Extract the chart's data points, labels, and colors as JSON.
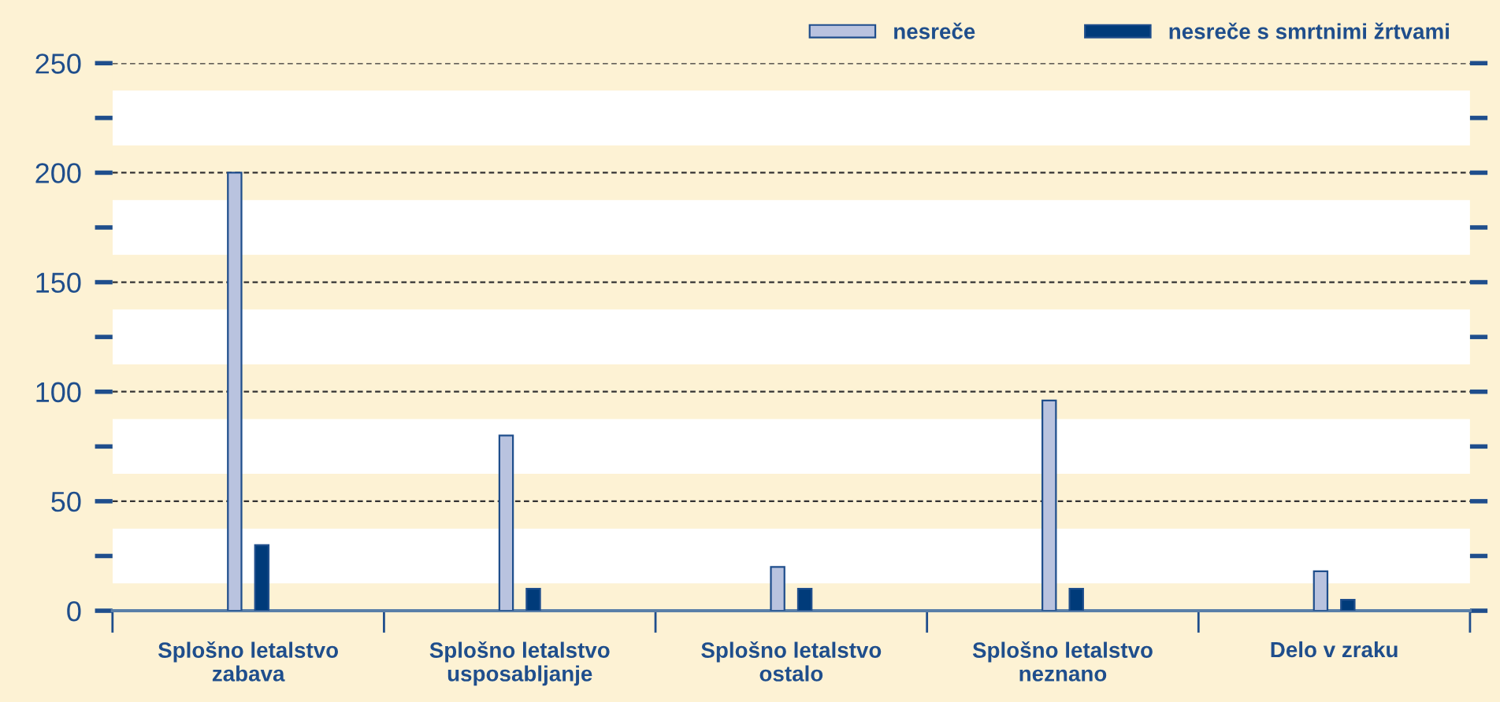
{
  "chart_data": {
    "type": "bar",
    "categories": [
      "Splošno letalstvo\nzabava",
      "Splošno letalstvo\nusposabljanje",
      "Splošno letalstvo\nostalo",
      "Splošno letalstvo\nneznano",
      "Delo v zraku"
    ],
    "series": [
      {
        "name": "nesreče",
        "color": "#b9c3df",
        "values": [
          200,
          80,
          20,
          96,
          18
        ]
      },
      {
        "name": "nesreče s smrtnimi žrtvami",
        "color": "#003b7a",
        "values": [
          30,
          10,
          10,
          10,
          5
        ]
      }
    ],
    "ylim": [
      0,
      250
    ],
    "yticks": [
      0,
      {
        "value": 25,
        "label": null
      },
      50,
      {
        "value": 75,
        "label": null
      },
      100,
      {
        "value": 125,
        "label": null
      },
      150,
      {
        "value": 175,
        "label": null
      },
      200,
      {
        "value": 225,
        "label": null
      },
      250
    ],
    "bands": [
      {
        "axis": "y",
        "from": 12.5,
        "to": 37.5,
        "color": "#ffffff"
      },
      {
        "axis": "y",
        "from": 62.5,
        "to": 87.5,
        "color": "#ffffff"
      },
      {
        "axis": "y",
        "from": 112.5,
        "to": 137.5,
        "color": "#ffffff"
      },
      {
        "axis": "y",
        "from": 162.5,
        "to": 187.5,
        "color": "#ffffff"
      },
      {
        "axis": "y",
        "from": 212.5,
        "to": 237.5,
        "color": "#ffffff"
      }
    ],
    "grid": "y",
    "line_style": "dashed",
    "legend": "top right"
  }
}
